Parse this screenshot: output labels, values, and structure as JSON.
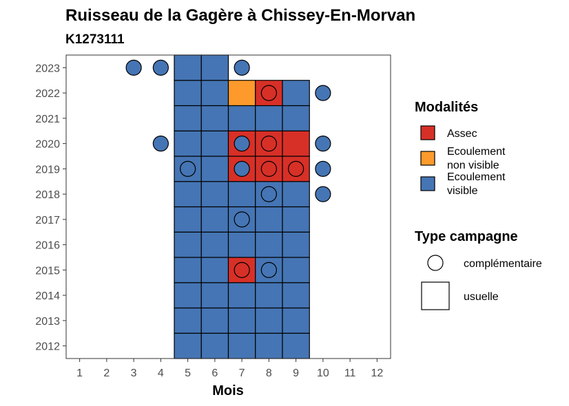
{
  "chart_data": {
    "type": "heatmap",
    "title": "Ruisseau de la Gagère à Chissey-En-Morvan",
    "subtitle": "K1273111",
    "xlabel": "Mois",
    "ylabel": "",
    "x_ticks": [
      "1",
      "2",
      "3",
      "4",
      "5",
      "6",
      "7",
      "8",
      "9",
      "10",
      "11",
      "12"
    ],
    "y_ticks": [
      "2012",
      "2013",
      "2014",
      "2015",
      "2016",
      "2017",
      "2018",
      "2019",
      "2020",
      "2021",
      "2022",
      "2023"
    ],
    "xlim": [
      0.5,
      12.5
    ],
    "ylim": [
      2011.5,
      2023.5
    ],
    "grid": false,
    "legend_position": "right",
    "colors": {
      "Assec": "#d73027",
      "Ecoulement non visible": "#fd9a2b",
      "Ecoulement visible": "#4575b4"
    },
    "legends": [
      {
        "title": "Modalités",
        "entries": [
          {
            "key": "Assec",
            "line1": "Assec",
            "line2": ""
          },
          {
            "key": "Ecoulement non visible",
            "line1": "Ecoulement",
            "line2": "non visible"
          },
          {
            "key": "Ecoulement visible",
            "line1": "Ecoulement",
            "line2": "visible"
          }
        ]
      },
      {
        "title": "Type campagne",
        "entries": [
          {
            "shape": "circle",
            "label": "complémentaire"
          },
          {
            "shape": "square",
            "label": "usuelle"
          }
        ]
      }
    ],
    "usuelle": [
      {
        "year": 2012,
        "month": 5,
        "value": "Ecoulement visible"
      },
      {
        "year": 2012,
        "month": 6,
        "value": "Ecoulement visible"
      },
      {
        "year": 2012,
        "month": 7,
        "value": "Ecoulement visible"
      },
      {
        "year": 2012,
        "month": 8,
        "value": "Ecoulement visible"
      },
      {
        "year": 2012,
        "month": 9,
        "value": "Ecoulement visible"
      },
      {
        "year": 2013,
        "month": 5,
        "value": "Ecoulement visible"
      },
      {
        "year": 2013,
        "month": 6,
        "value": "Ecoulement visible"
      },
      {
        "year": 2013,
        "month": 7,
        "value": "Ecoulement visible"
      },
      {
        "year": 2013,
        "month": 8,
        "value": "Ecoulement visible"
      },
      {
        "year": 2013,
        "month": 9,
        "value": "Ecoulement visible"
      },
      {
        "year": 2014,
        "month": 5,
        "value": "Ecoulement visible"
      },
      {
        "year": 2014,
        "month": 6,
        "value": "Ecoulement visible"
      },
      {
        "year": 2014,
        "month": 7,
        "value": "Ecoulement visible"
      },
      {
        "year": 2014,
        "month": 8,
        "value": "Ecoulement visible"
      },
      {
        "year": 2014,
        "month": 9,
        "value": "Ecoulement visible"
      },
      {
        "year": 2015,
        "month": 5,
        "value": "Ecoulement visible"
      },
      {
        "year": 2015,
        "month": 6,
        "value": "Ecoulement visible"
      },
      {
        "year": 2015,
        "month": 7,
        "value": "Assec"
      },
      {
        "year": 2015,
        "month": 8,
        "value": "Ecoulement visible"
      },
      {
        "year": 2015,
        "month": 9,
        "value": "Ecoulement visible"
      },
      {
        "year": 2016,
        "month": 5,
        "value": "Ecoulement visible"
      },
      {
        "year": 2016,
        "month": 6,
        "value": "Ecoulement visible"
      },
      {
        "year": 2016,
        "month": 7,
        "value": "Ecoulement visible"
      },
      {
        "year": 2016,
        "month": 8,
        "value": "Ecoulement visible"
      },
      {
        "year": 2016,
        "month": 9,
        "value": "Ecoulement visible"
      },
      {
        "year": 2017,
        "month": 5,
        "value": "Ecoulement visible"
      },
      {
        "year": 2017,
        "month": 6,
        "value": "Ecoulement visible"
      },
      {
        "year": 2017,
        "month": 7,
        "value": "Ecoulement visible"
      },
      {
        "year": 2017,
        "month": 8,
        "value": "Ecoulement visible"
      },
      {
        "year": 2017,
        "month": 9,
        "value": "Ecoulement visible"
      },
      {
        "year": 2018,
        "month": 5,
        "value": "Ecoulement visible"
      },
      {
        "year": 2018,
        "month": 6,
        "value": "Ecoulement visible"
      },
      {
        "year": 2018,
        "month": 7,
        "value": "Ecoulement visible"
      },
      {
        "year": 2018,
        "month": 8,
        "value": "Ecoulement visible"
      },
      {
        "year": 2018,
        "month": 9,
        "value": "Ecoulement visible"
      },
      {
        "year": 2019,
        "month": 5,
        "value": "Ecoulement visible"
      },
      {
        "year": 2019,
        "month": 6,
        "value": "Ecoulement visible"
      },
      {
        "year": 2019,
        "month": 7,
        "value": "Assec"
      },
      {
        "year": 2019,
        "month": 8,
        "value": "Assec"
      },
      {
        "year": 2019,
        "month": 9,
        "value": "Assec"
      },
      {
        "year": 2020,
        "month": 5,
        "value": "Ecoulement visible"
      },
      {
        "year": 2020,
        "month": 6,
        "value": "Ecoulement visible"
      },
      {
        "year": 2020,
        "month": 7,
        "value": "Assec"
      },
      {
        "year": 2020,
        "month": 8,
        "value": "Assec"
      },
      {
        "year": 2020,
        "month": 9,
        "value": "Assec"
      },
      {
        "year": 2021,
        "month": 5,
        "value": "Ecoulement visible"
      },
      {
        "year": 2021,
        "month": 6,
        "value": "Ecoulement visible"
      },
      {
        "year": 2021,
        "month": 7,
        "value": "Ecoulement visible"
      },
      {
        "year": 2021,
        "month": 8,
        "value": "Ecoulement visible"
      },
      {
        "year": 2021,
        "month": 9,
        "value": "Ecoulement visible"
      },
      {
        "year": 2022,
        "month": 5,
        "value": "Ecoulement visible"
      },
      {
        "year": 2022,
        "month": 6,
        "value": "Ecoulement visible"
      },
      {
        "year": 2022,
        "month": 7,
        "value": "Ecoulement non visible"
      },
      {
        "year": 2022,
        "month": 8,
        "value": "Assec"
      },
      {
        "year": 2022,
        "month": 9,
        "value": "Ecoulement visible"
      },
      {
        "year": 2023,
        "month": 5,
        "value": "Ecoulement visible"
      },
      {
        "year": 2023,
        "month": 6,
        "value": "Ecoulement visible"
      }
    ],
    "complementaire": [
      {
        "year": 2015,
        "month": 7,
        "value": "Assec"
      },
      {
        "year": 2015,
        "month": 8,
        "value": "Ecoulement visible"
      },
      {
        "year": 2017,
        "month": 7,
        "value": "Ecoulement visible"
      },
      {
        "year": 2018,
        "month": 8,
        "value": "Ecoulement visible"
      },
      {
        "year": 2018,
        "month": 10,
        "value": "Ecoulement visible"
      },
      {
        "year": 2019,
        "month": 5,
        "value": "Ecoulement visible"
      },
      {
        "year": 2019,
        "month": 7,
        "value": "Ecoulement visible"
      },
      {
        "year": 2019,
        "month": 8,
        "value": "Assec"
      },
      {
        "year": 2019,
        "month": 9,
        "value": "Assec"
      },
      {
        "year": 2019,
        "month": 10,
        "value": "Ecoulement visible"
      },
      {
        "year": 2020,
        "month": 4,
        "value": "Ecoulement visible"
      },
      {
        "year": 2020,
        "month": 7,
        "value": "Ecoulement visible"
      },
      {
        "year": 2020,
        "month": 8,
        "value": "Assec"
      },
      {
        "year": 2020,
        "month": 10,
        "value": "Ecoulement visible"
      },
      {
        "year": 2022,
        "month": 8,
        "value": "Assec"
      },
      {
        "year": 2022,
        "month": 10,
        "value": "Ecoulement visible"
      },
      {
        "year": 2023,
        "month": 3,
        "value": "Ecoulement visible"
      },
      {
        "year": 2023,
        "month": 4,
        "value": "Ecoulement visible"
      },
      {
        "year": 2023,
        "month": 7,
        "value": "Ecoulement visible"
      }
    ]
  }
}
